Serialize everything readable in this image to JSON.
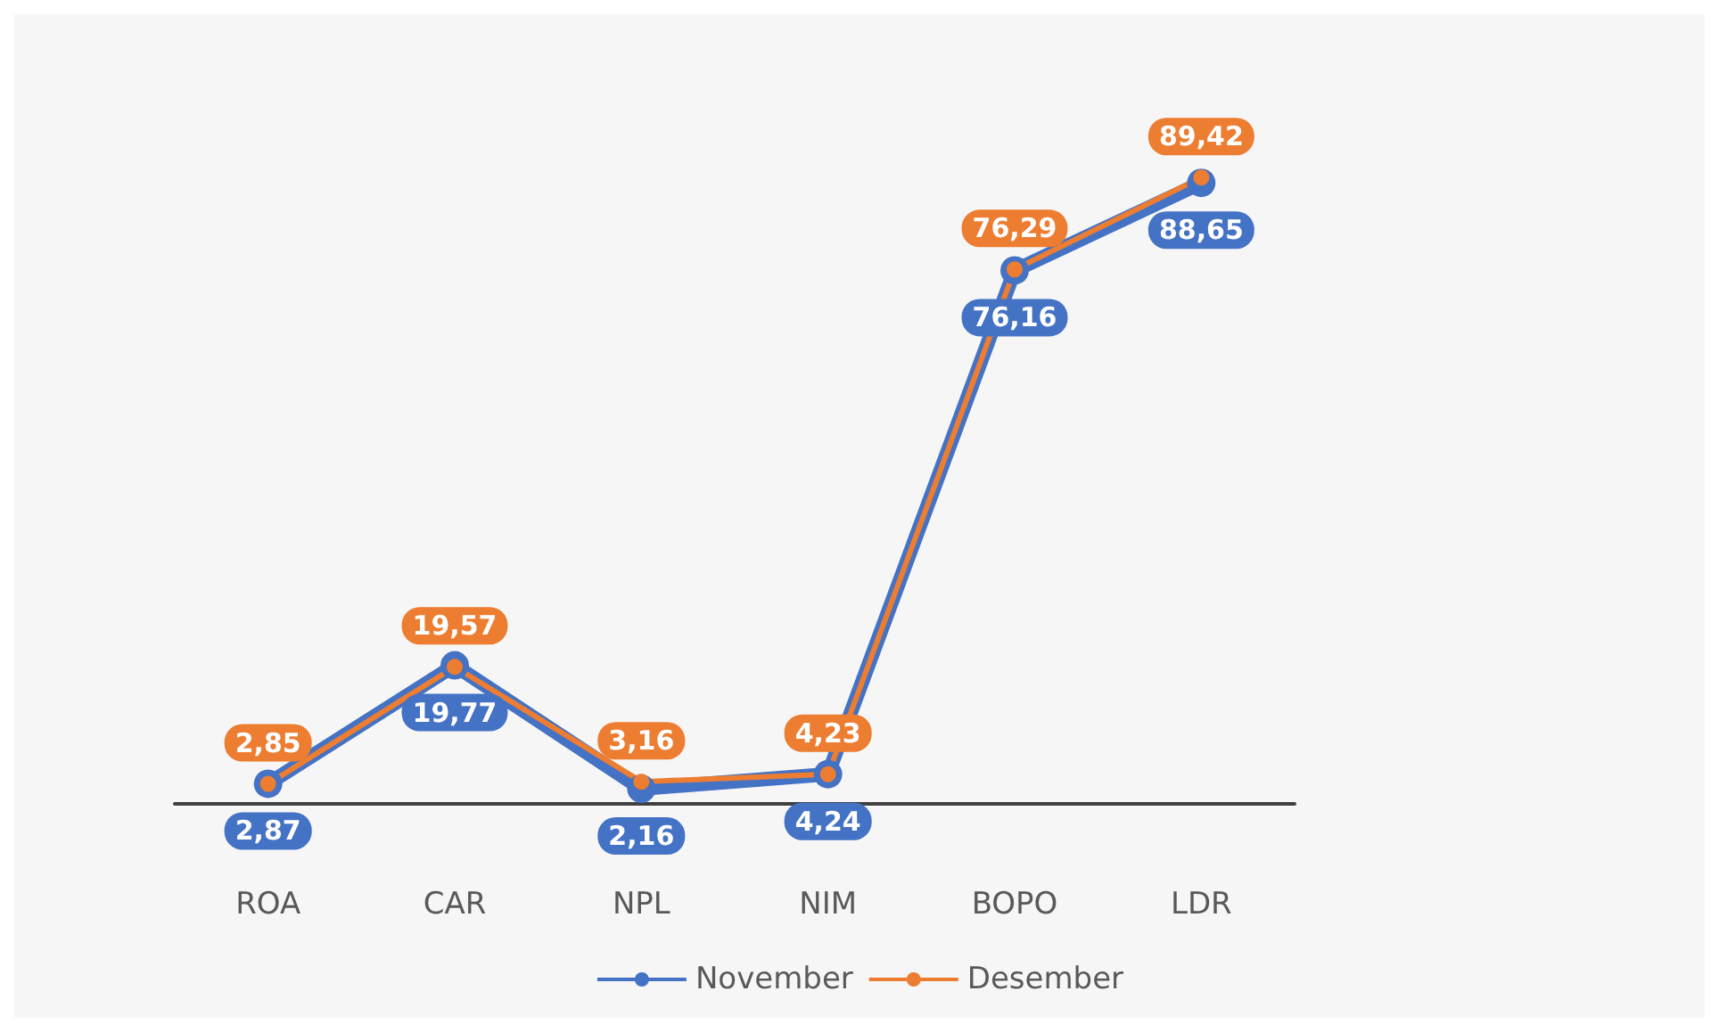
{
  "chart_data": {
    "type": "line",
    "categories": [
      "ROA",
      "CAR",
      "NPL",
      "NIM",
      "BOPO",
      "LDR"
    ],
    "series": [
      {
        "name": "November",
        "color": "#4472c4",
        "values": [
          2.87,
          19.77,
          2.16,
          4.24,
          76.16,
          88.65
        ],
        "value_labels": [
          "2,87",
          "19,77",
          "2,16",
          "4,24",
          "76,16",
          "88,65"
        ]
      },
      {
        "name": "Desember",
        "color": "#ed7d31",
        "values": [
          2.85,
          19.57,
          3.16,
          4.23,
          76.29,
          89.42
        ],
        "value_labels": [
          "2,85",
          "19,57",
          "3,16",
          "4,23",
          "76,29",
          "89,42"
        ]
      }
    ],
    "marker": "circle",
    "grid": false,
    "legend": "bottom",
    "tick_labels": "x"
  }
}
